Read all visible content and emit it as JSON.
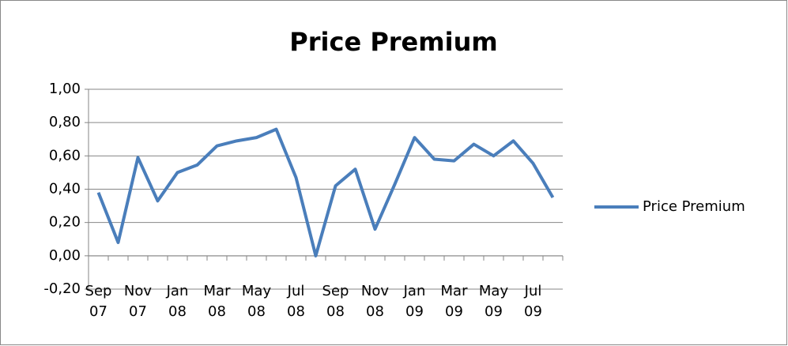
{
  "chart_data": {
    "type": "line",
    "title": "Price Premium",
    "categories": [
      "Sep 07",
      null,
      "Nov 07",
      null,
      "Jan 08",
      null,
      "Mar 08",
      null,
      "May 08",
      null,
      "Jul 08",
      null,
      "Sep 08",
      null,
      "Nov 08",
      null,
      "Jan 09",
      null,
      "Mar 09",
      null,
      "May 09",
      null,
      "Jul 09",
      null
    ],
    "series": [
      {
        "name": "Price Premium",
        "color": "#4a7ebb",
        "values": [
          0.38,
          0.08,
          0.59,
          0.33,
          0.5,
          0.545,
          0.66,
          0.69,
          0.71,
          0.76,
          0.47,
          0.0,
          0.42,
          0.52,
          0.16,
          0.43,
          0.71,
          0.58,
          0.57,
          0.67,
          0.6,
          0.69,
          0.555,
          0.35
        ]
      }
    ],
    "ylim": [
      -0.2,
      1.0
    ],
    "yticks": [
      {
        "value": -0.2,
        "label": "-0,20"
      },
      {
        "value": 0,
        "label": "0,00"
      },
      {
        "value": 0.2,
        "label": "0,20"
      },
      {
        "value": 0.4,
        "label": "0,40"
      },
      {
        "value": 0.6,
        "label": "0,60"
      },
      {
        "value": 0.8,
        "label": "0,80"
      },
      {
        "value": 1.0,
        "label": "1,00"
      }
    ],
    "grid": true,
    "legend": "right"
  }
}
